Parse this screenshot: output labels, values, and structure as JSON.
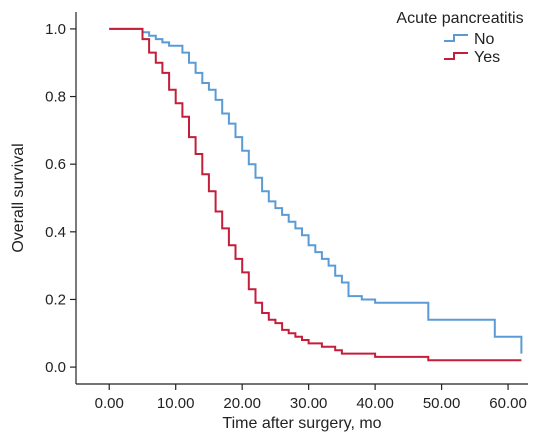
{
  "chart_data": {
    "type": "line",
    "step": true,
    "xlabel": "Time after surgery, mo",
    "ylabel": "Overall survival",
    "xlim": [
      -5,
      63
    ],
    "ylim": [
      -0.05,
      1.05
    ],
    "xticks": [
      0,
      10,
      20,
      30,
      40,
      50,
      60
    ],
    "xtick_labels": [
      "0.00",
      "10.00",
      "20.00",
      "30.00",
      "40.00",
      "50.00",
      "60.00"
    ],
    "yticks": [
      0.0,
      0.2,
      0.4,
      0.6,
      0.8,
      1.0
    ],
    "ytick_labels": [
      "0.0",
      "0.2",
      "0.4",
      "0.6",
      "0.8",
      "1.0"
    ],
    "grid": false,
    "legend": {
      "title": "Acute pancreatitis",
      "position": "top-right"
    },
    "series": [
      {
        "name": "No",
        "color": "#5b9bd5",
        "x": [
          0,
          5,
          6,
          7,
          8,
          9,
          11,
          12,
          13,
          14,
          15,
          16,
          17,
          18,
          19,
          20,
          21,
          22,
          23,
          24,
          25,
          26,
          27,
          28,
          29,
          30,
          31,
          32,
          33,
          34,
          35,
          36,
          38,
          40,
          45,
          48,
          50,
          55,
          58,
          60,
          62
        ],
        "y": [
          1.0,
          0.99,
          0.98,
          0.97,
          0.96,
          0.95,
          0.93,
          0.9,
          0.87,
          0.84,
          0.82,
          0.79,
          0.75,
          0.72,
          0.68,
          0.64,
          0.6,
          0.56,
          0.52,
          0.49,
          0.47,
          0.45,
          0.43,
          0.41,
          0.39,
          0.36,
          0.34,
          0.32,
          0.3,
          0.27,
          0.25,
          0.21,
          0.2,
          0.19,
          0.19,
          0.14,
          0.14,
          0.14,
          0.09,
          0.09,
          0.04
        ]
      },
      {
        "name": "Yes",
        "color": "#c41e3a",
        "x": [
          0,
          5,
          6,
          7,
          8,
          9,
          10,
          11,
          12,
          13,
          14,
          15,
          16,
          17,
          18,
          19,
          20,
          21,
          22,
          23,
          24,
          25,
          26,
          27,
          28,
          29,
          30,
          32,
          34,
          35,
          40,
          45,
          48,
          50,
          55,
          60,
          62
        ],
        "y": [
          1.0,
          0.97,
          0.93,
          0.9,
          0.87,
          0.82,
          0.78,
          0.74,
          0.68,
          0.63,
          0.57,
          0.52,
          0.46,
          0.41,
          0.36,
          0.32,
          0.28,
          0.23,
          0.19,
          0.16,
          0.14,
          0.13,
          0.11,
          0.1,
          0.09,
          0.08,
          0.07,
          0.06,
          0.05,
          0.04,
          0.03,
          0.03,
          0.02,
          0.02,
          0.02,
          0.02,
          0.02
        ]
      }
    ]
  }
}
